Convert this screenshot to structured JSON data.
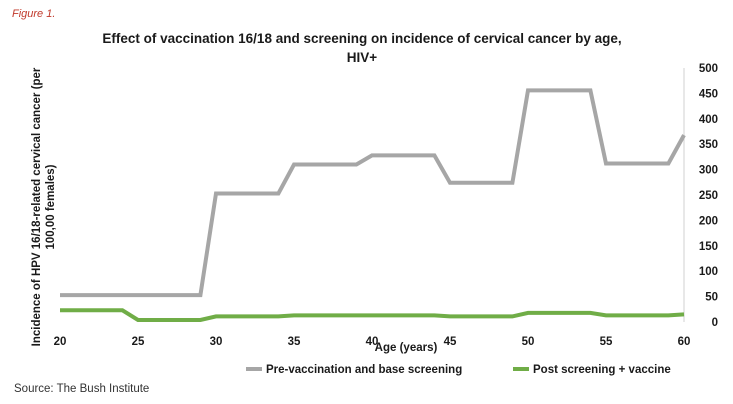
{
  "figure_label": "Figure 1.",
  "source": "Source: The Bush Institute",
  "chart_data": {
    "type": "line",
    "title": [
      "Effect of vaccination 16/18 and screening on incidence of cervical cancer by age,",
      "HIV+"
    ],
    "xlabel": "Age (years)",
    "ylabel": [
      "Incidence of HPV 16/18-related cervical cancer (per",
      "100,00 females)"
    ],
    "xlim": [
      20,
      60
    ],
    "ylim": [
      0,
      500
    ],
    "x_ticks": [
      "20",
      "25",
      "30",
      "35",
      "40",
      "45",
      "50",
      "55",
      "60"
    ],
    "y_ticks": [
      "0",
      "50",
      "100",
      "150",
      "200",
      "250",
      "300",
      "350",
      "400",
      "450",
      "500"
    ],
    "y_axis_side": "right",
    "grid": false,
    "legend_position": "bottom",
    "series": [
      {
        "name": "Pre-vaccination and base screening",
        "color": "#a6a6a6",
        "x": [
          20,
          29,
          30,
          34,
          35,
          39,
          40,
          44,
          45,
          49,
          50,
          54,
          55,
          59,
          60
        ],
        "y": [
          53,
          53,
          253,
          253,
          310,
          310,
          328,
          328,
          274,
          274,
          456,
          456,
          312,
          312,
          368
        ]
      },
      {
        "name": "Post screening + vaccine",
        "color": "#70ad47",
        "x": [
          20,
          24,
          25,
          29,
          30,
          34,
          35,
          44,
          45,
          49,
          50,
          54,
          55,
          59,
          60
        ],
        "y": [
          23,
          23,
          4,
          4,
          11,
          11,
          13,
          13,
          11,
          11,
          18,
          18,
          13,
          13,
          15
        ]
      }
    ]
  }
}
